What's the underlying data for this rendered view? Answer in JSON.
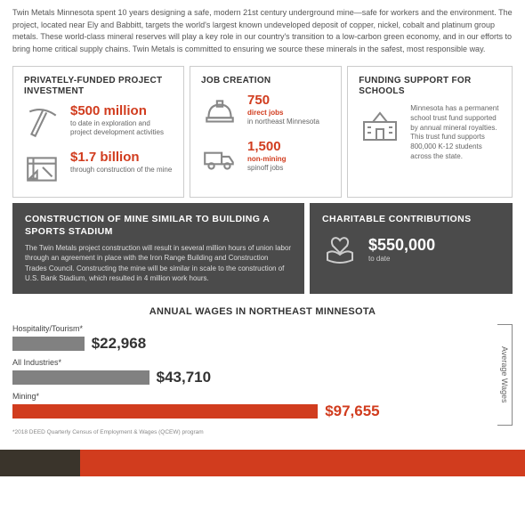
{
  "intro": "Twin Metals Minnesota spent 10 years designing a safe, modern 21st century underground mine—safe for workers and the environment. The project, located near Ely and Babbitt, targets the world's largest known undeveloped deposit of copper, nickel, cobalt and platinum group metals. These world-class mineral reserves will play a key role in our country's transition to a low-carbon green economy, and in our efforts to bring home critical supply chains. Twin Metals is committed to ensuring we source these minerals in the safest, most responsible way.",
  "cards": {
    "investment": {
      "title": "PRIVATELY-FUNDED PROJECT INVESTMENT",
      "items": [
        {
          "value": "$500 million",
          "desc": "to date in exploration and project development activities"
        },
        {
          "value": "$1.7 billion",
          "desc": "through construction of the mine"
        }
      ]
    },
    "jobs": {
      "title": "JOB CREATION",
      "items": [
        {
          "value": "750",
          "line1": "direct jobs",
          "desc": "in northeast Minnesota"
        },
        {
          "value": "1,500",
          "line1": "non-mining",
          "desc": "spinoff jobs"
        }
      ]
    },
    "schools": {
      "title": "FUNDING SUPPORT FOR SCHOOLS",
      "desc": "Minnesota has a permanent school trust fund supported by annual mineral royalties. This trust fund supports 800,000 K-12 students across the state."
    }
  },
  "dark": {
    "construction": {
      "title": "CONSTRUCTION OF MINE SIMILAR TO BUILDING A SPORTS STADIUM",
      "desc": "The Twin Metals project construction will result in several million hours of union labor through an agreement in place with the Iron Range Building and Construction Trades Council. Constructing the mine will be similar in scale to the construction of U.S. Bank Stadium, which resulted in 4 million work hours."
    },
    "charity": {
      "title": "CHARITABLE CONTRIBUTIONS",
      "value": "$550,000",
      "sub": "to date"
    }
  },
  "wages": {
    "title": "ANNUAL WAGES IN NORTHEAST MINNESOTA",
    "axis_label": "Average Wages",
    "max": 97655,
    "colors": {
      "gray": "#818181",
      "orange": "#d13c1e",
      "value_text": "#333333"
    },
    "bars": [
      {
        "label": "Hospitality/Tourism*",
        "value": 22968,
        "display": "$22,968",
        "color": "#818181",
        "value_color": "#333333"
      },
      {
        "label": "All Industries*",
        "value": 43710,
        "display": "$43,710",
        "color": "#818181",
        "value_color": "#333333"
      },
      {
        "label": "Mining*",
        "value": 97655,
        "display": "$97,655",
        "color": "#d13c1e",
        "value_color": "#d13c1e"
      }
    ],
    "footnote": "*2018 DEED Quarterly Census of Employment & Wages (QCEW) program"
  }
}
